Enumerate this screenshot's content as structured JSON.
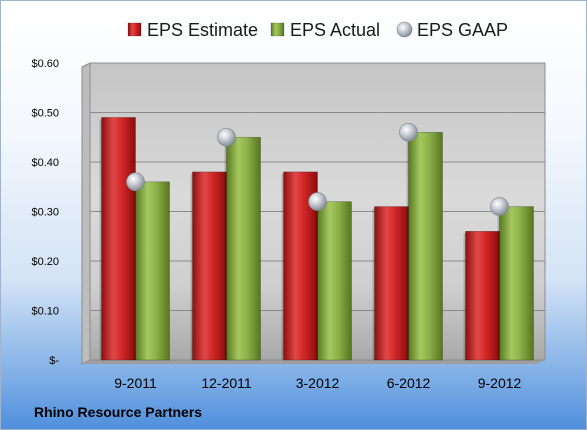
{
  "chart_data": {
    "type": "bar",
    "categories": [
      "9-2011",
      "12-2011",
      "3-2012",
      "6-2012",
      "9-2012"
    ],
    "series": [
      {
        "name": "EPS Estimate",
        "kind": "bar",
        "color": "#cc1f1f",
        "values": [
          0.49,
          0.38,
          0.38,
          0.31,
          0.26
        ]
      },
      {
        "name": "EPS Actual",
        "kind": "bar",
        "color": "#7ea33a",
        "values": [
          0.36,
          0.45,
          0.32,
          0.46,
          0.31
        ]
      },
      {
        "name": "EPS GAAP",
        "kind": "marker",
        "color": "#b9bec6",
        "values": [
          0.36,
          0.45,
          0.32,
          0.46,
          0.31
        ]
      }
    ],
    "ylim": [
      0,
      0.6
    ],
    "yticks": [
      0,
      0.1,
      0.2,
      0.3,
      0.4,
      0.5,
      0.6
    ],
    "ytick_labels": [
      "$-",
      "$0.10",
      "$0.20",
      "$0.30",
      "$0.40",
      "$0.50",
      "$0.60"
    ],
    "grid": true,
    "legend_position": "top"
  },
  "company_name": "Rhino Resource Partners"
}
